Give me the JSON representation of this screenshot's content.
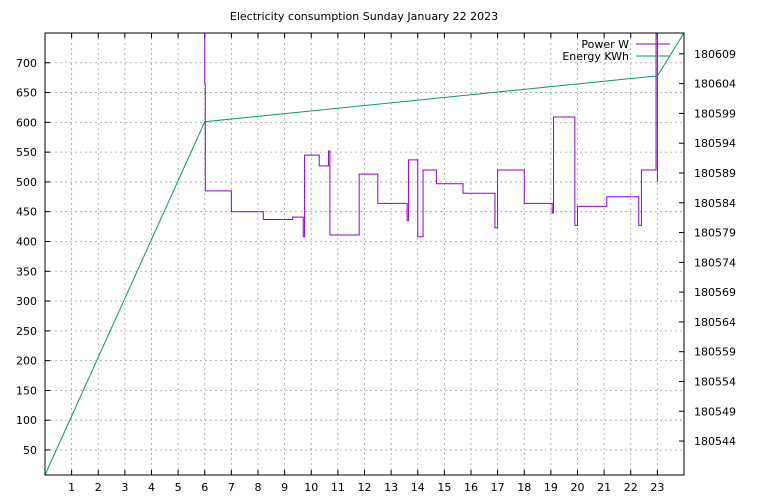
{
  "chart_data": {
    "type": "line",
    "title": "Electricity consumption Sunday January 22 2023",
    "xlabel": "",
    "ylabel": "",
    "y2label": "",
    "grid": true,
    "legend_position": "top-right",
    "xlim": [
      0,
      24
    ],
    "ylim": [
      8,
      750
    ],
    "y2lim": [
      180538.3,
      180612.5
    ],
    "x_ticks": [
      "1",
      "2",
      "3",
      "4",
      "5",
      "6",
      "7",
      "8",
      "9",
      "10",
      "11",
      "12",
      "13",
      "14",
      "15",
      "16",
      "17",
      "18",
      "19",
      "20",
      "21",
      "22",
      "23"
    ],
    "y_ticks": [
      "50",
      "100",
      "150",
      "200",
      "250",
      "300",
      "350",
      "400",
      "450",
      "500",
      "550",
      "600",
      "650",
      "700"
    ],
    "y2_ticks": [
      "180544",
      "180549",
      "180554",
      "180559",
      "180564",
      "180569",
      "180574",
      "180579",
      "180584",
      "180589",
      "180594",
      "180599",
      "180604",
      "180609"
    ],
    "series": [
      {
        "name": "Power W",
        "color": "#9400d3",
        "axis": "y",
        "points": [
          [
            6.0,
            750
          ],
          [
            6.0,
            665
          ],
          [
            6.02,
            665
          ],
          [
            6.02,
            485
          ],
          [
            7.0,
            485
          ],
          [
            7.0,
            450
          ],
          [
            8.2,
            450
          ],
          [
            8.2,
            437
          ],
          [
            9.3,
            437
          ],
          [
            9.3,
            441
          ],
          [
            9.7,
            441
          ],
          [
            9.7,
            408
          ],
          [
            9.75,
            408
          ],
          [
            9.75,
            545
          ],
          [
            10.3,
            545
          ],
          [
            10.3,
            527
          ],
          [
            10.65,
            527
          ],
          [
            10.65,
            552
          ],
          [
            10.7,
            552
          ],
          [
            10.7,
            411
          ],
          [
            11.8,
            411
          ],
          [
            11.8,
            513
          ],
          [
            12.5,
            513
          ],
          [
            12.5,
            464
          ],
          [
            13.6,
            464
          ],
          [
            13.6,
            435
          ],
          [
            13.65,
            435
          ],
          [
            13.65,
            537
          ],
          [
            14.0,
            537
          ],
          [
            14.0,
            408
          ],
          [
            14.2,
            408
          ],
          [
            14.2,
            520
          ],
          [
            14.7,
            520
          ],
          [
            14.7,
            497
          ],
          [
            15.7,
            497
          ],
          [
            15.7,
            481
          ],
          [
            16.9,
            481
          ],
          [
            16.9,
            423
          ],
          [
            17.0,
            423
          ],
          [
            17.0,
            520
          ],
          [
            18.0,
            520
          ],
          [
            18.0,
            464
          ],
          [
            19.05,
            464
          ],
          [
            19.05,
            448
          ],
          [
            19.1,
            448
          ],
          [
            19.1,
            609
          ],
          [
            19.9,
            609
          ],
          [
            19.9,
            427
          ],
          [
            20.0,
            427
          ],
          [
            20.0,
            459
          ],
          [
            21.1,
            459
          ],
          [
            21.1,
            475
          ],
          [
            22.3,
            475
          ],
          [
            22.3,
            427
          ],
          [
            22.4,
            427
          ],
          [
            22.4,
            520
          ],
          [
            22.95,
            520
          ],
          [
            22.95,
            750
          ],
          [
            23.0,
            750
          ],
          [
            23.0,
            500
          ]
        ]
      },
      {
        "name": "Energy KWh",
        "color": "#009e73",
        "axis": "y2",
        "points": [
          [
            0,
            180538.3
          ],
          [
            6.0,
            180597.6
          ],
          [
            23.0,
            180605.3
          ],
          [
            24,
            180612.5
          ]
        ]
      }
    ]
  }
}
